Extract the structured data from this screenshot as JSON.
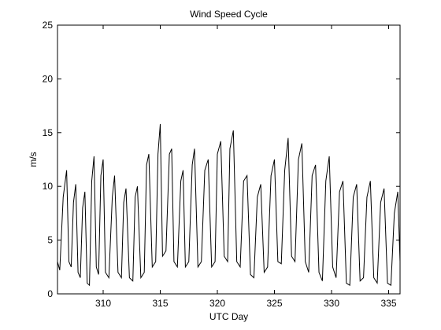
{
  "chart_data": {
    "type": "line",
    "title": "Wind Speed Cycle",
    "xlabel": "UTC Day",
    "ylabel": "m/s",
    "xlim": [
      306,
      336
    ],
    "ylim": [
      0,
      25
    ],
    "xticks": [
      310,
      315,
      320,
      325,
      330,
      335
    ],
    "yticks": [
      0,
      5,
      10,
      15,
      20,
      25
    ],
    "grid": false,
    "line_color": "#000000",
    "series": [
      {
        "x": [
          306.0,
          306.2,
          306.5,
          306.8,
          307.0,
          307.2,
          307.4,
          307.6,
          307.8,
          308.0,
          308.2,
          308.4,
          308.6,
          308.8,
          309.0,
          309.2,
          309.4,
          309.6,
          309.8,
          310.0,
          310.2,
          310.5,
          310.8,
          311.0,
          311.3,
          311.6,
          311.8,
          312.0,
          312.3,
          312.6,
          312.8,
          313.0,
          313.3,
          313.6,
          313.8,
          314.0,
          314.3,
          314.6,
          314.8,
          315.0,
          315.2,
          315.5,
          315.8,
          316.0,
          316.2,
          316.5,
          316.8,
          317.0,
          317.2,
          317.5,
          317.8,
          318.0,
          318.3,
          318.6,
          318.9,
          319.2,
          319.5,
          319.8,
          320.0,
          320.3,
          320.6,
          320.9,
          321.1,
          321.4,
          321.7,
          322.0,
          322.3,
          322.6,
          322.9,
          323.2,
          323.5,
          323.8,
          324.1,
          324.4,
          324.7,
          325.0,
          325.3,
          325.6,
          325.9,
          326.2,
          326.5,
          326.8,
          327.1,
          327.4,
          327.7,
          328.0,
          328.3,
          328.6,
          328.9,
          329.2,
          329.5,
          329.8,
          330.1,
          330.4,
          330.7,
          331.0,
          331.3,
          331.6,
          331.9,
          332.2,
          332.5,
          332.8,
          333.1,
          333.4,
          333.7,
          334.0,
          334.3,
          334.6,
          334.9,
          335.2,
          335.5,
          335.8,
          336.0
        ],
        "values": [
          3.0,
          2.2,
          9.0,
          11.5,
          3.0,
          2.5,
          8.5,
          10.2,
          2.0,
          1.5,
          8.0,
          9.5,
          1.0,
          0.8,
          10.5,
          12.8,
          2.5,
          1.8,
          11.0,
          12.5,
          2.0,
          1.5,
          9.0,
          11.0,
          2.0,
          1.5,
          8.5,
          9.8,
          1.5,
          1.2,
          9.0,
          10.0,
          1.5,
          2.0,
          12.0,
          13.0,
          2.5,
          3.0,
          13.0,
          15.8,
          3.5,
          4.0,
          13.0,
          13.5,
          3.0,
          2.5,
          10.5,
          11.5,
          2.5,
          3.0,
          12.0,
          13.5,
          2.5,
          3.0,
          11.5,
          12.5,
          2.5,
          3.0,
          13.0,
          14.2,
          3.5,
          3.0,
          13.5,
          15.2,
          3.0,
          2.5,
          10.5,
          11.0,
          1.8,
          1.5,
          9.0,
          10.2,
          2.0,
          2.5,
          11.0,
          12.5,
          3.0,
          2.8,
          11.5,
          14.5,
          3.5,
          3.0,
          12.5,
          14.0,
          3.0,
          2.0,
          11.0,
          12.0,
          2.0,
          1.2,
          10.5,
          12.8,
          2.5,
          1.5,
          9.5,
          10.5,
          1.0,
          0.8,
          9.0,
          10.2,
          1.2,
          1.5,
          9.0,
          10.5,
          1.5,
          1.0,
          8.5,
          9.8,
          1.0,
          0.8,
          7.5,
          9.5,
          3.0
        ]
      }
    ]
  }
}
